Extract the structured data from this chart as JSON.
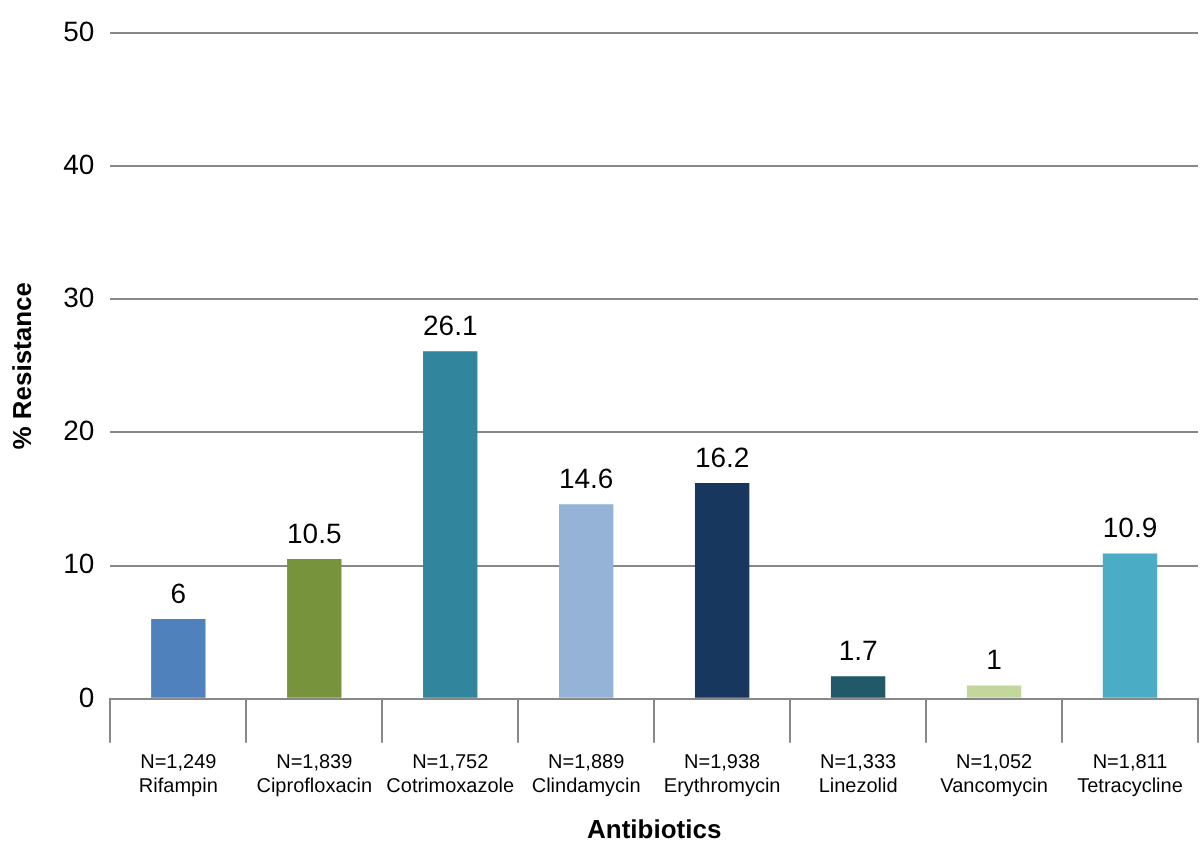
{
  "chart_data": {
    "type": "bar",
    "xlabel": "Antibiotics",
    "ylabel": "% Resistance",
    "categories": [
      "N=1,249\nRifampin",
      "N=1,839\nCiprofloxacin",
      "N=1,752\nCotrimoxazole",
      "N=1,889\nClindamycin",
      "N=1,938\nErythromycin",
      "N=1,333\nLinezolid",
      "N=1,052\nVancomycin",
      "N=1,811\nTetracycline"
    ],
    "values": [
      6,
      10.5,
      26.1,
      14.6,
      16.2,
      1.7,
      1,
      10.9
    ],
    "colors": [
      "#4f81bd",
      "#77933c",
      "#31859c",
      "#95b3d7",
      "#17375e",
      "#215968",
      "#c3d69b",
      "#4bacc6"
    ],
    "ylim": [
      0,
      50
    ],
    "yticks": [
      0,
      10,
      20,
      30,
      40,
      50
    ],
    "grid": "y",
    "data_labels": true
  }
}
